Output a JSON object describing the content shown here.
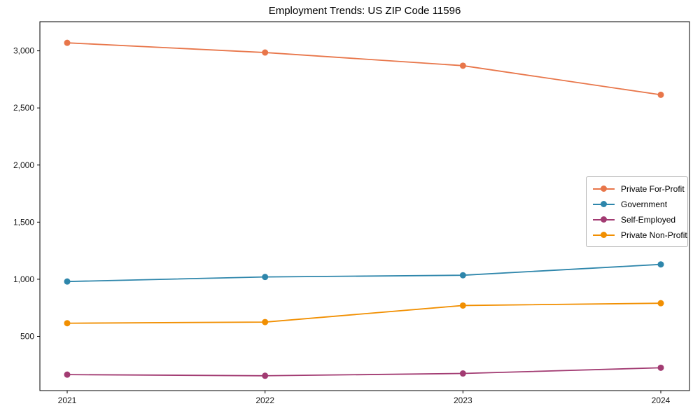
{
  "title": "Employment Trends: US ZIP Code 11596",
  "chart_data": {
    "type": "line",
    "title": "Employment Trends: US ZIP Code 11596",
    "x": [
      "2021",
      "2022",
      "2023",
      "2024"
    ],
    "series": [
      {
        "name": "Private For-Profit",
        "color": "#E8764A",
        "values": [
          3070,
          2985,
          2870,
          2615
        ]
      },
      {
        "name": "Government",
        "color": "#2E86AB",
        "values": [
          980,
          1020,
          1035,
          1130
        ]
      },
      {
        "name": "Self-Employed",
        "color": "#A23B72",
        "values": [
          165,
          155,
          175,
          225
        ]
      },
      {
        "name": "Private Non-Profit",
        "color": "#F18F01",
        "values": [
          615,
          625,
          770,
          790
        ]
      }
    ],
    "xlabel": "",
    "ylabel": "",
    "ylim": [
      25,
      3255
    ],
    "yticks": [
      500,
      1000,
      1500,
      2000,
      2500,
      3000
    ],
    "ytick_labels": [
      "500",
      "1,000",
      "1,500",
      "2,000",
      "2,500",
      "3,000"
    ],
    "grid": false,
    "legend_position": "center-right",
    "axis_color": "#000000",
    "tick_label_color": "#1a1a1a",
    "marker": "circle",
    "marker_radius": 4.5,
    "line_width": 1.8
  }
}
